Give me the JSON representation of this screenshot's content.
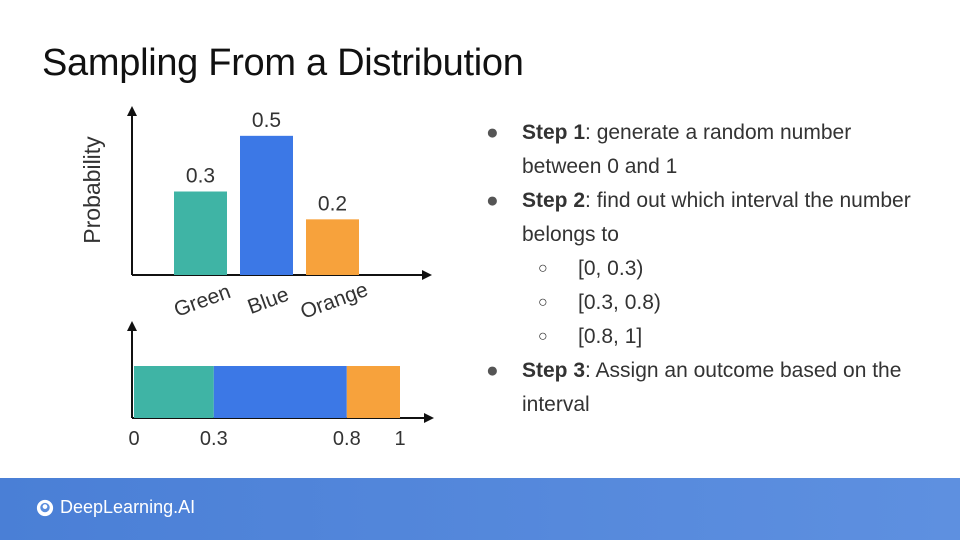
{
  "slide": {
    "title": "Sampling From a Distribution"
  },
  "chart_data": [
    {
      "type": "bar",
      "categories": [
        "Green",
        "Blue",
        "Orange"
      ],
      "values": [
        0.3,
        0.5,
        0.2
      ],
      "data_labels": [
        "0.3",
        "0.5",
        "0.2"
      ],
      "colors": [
        "#3fb4a5",
        "#3c78e6",
        "#f7a23c"
      ],
      "ylabel": "Probability",
      "xlabel": "",
      "ylim": [
        0,
        0.6
      ]
    },
    {
      "type": "bar",
      "orientation": "stacked-horizontal",
      "segments": [
        {
          "category": "Green",
          "start": 0,
          "end": 0.3,
          "color": "#3fb4a5"
        },
        {
          "category": "Blue",
          "start": 0.3,
          "end": 0.8,
          "color": "#3c78e6"
        },
        {
          "category": "Orange",
          "start": 0.8,
          "end": 1,
          "color": "#f7a23c"
        }
      ],
      "tick_labels": [
        "0",
        "0.3",
        "0.8",
        "1"
      ],
      "xlim": [
        0,
        1
      ]
    }
  ],
  "steps": [
    {
      "bold": "Step 1",
      "text": ": generate a random number between 0 and 1"
    },
    {
      "bold": "Step 2",
      "text": ": find out which interval the number belongs to"
    },
    {
      "bold": "Step 3",
      "text": ": Assign an outcome based on the interval"
    }
  ],
  "intervals": [
    "[0, 0.3)",
    "[0.3, 0.8)",
    "[0.8, 1]"
  ],
  "bullets": {
    "filled": "●",
    "hollow": "○"
  },
  "footer": {
    "brand": "DeepLearning.AI",
    "logo_icon": "deeplearning-ai-logo-icon",
    "color": "#4a7fd6"
  }
}
